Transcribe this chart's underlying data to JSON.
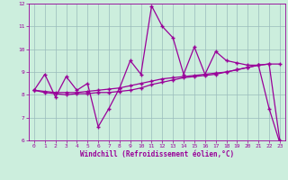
{
  "xlabel": "Windchill (Refroidissement éolien,°C)",
  "background_color": "#cceedd",
  "line_color": "#990099",
  "xlim": [
    -0.5,
    23.5
  ],
  "ylim": [
    6,
    12
  ],
  "yticks": [
    6,
    7,
    8,
    9,
    10,
    11,
    12
  ],
  "xticks": [
    0,
    1,
    2,
    3,
    4,
    5,
    6,
    7,
    8,
    9,
    10,
    11,
    12,
    13,
    14,
    15,
    16,
    17,
    18,
    19,
    20,
    21,
    22,
    23
  ],
  "series1_x": [
    0,
    1,
    2,
    3,
    4,
    5,
    6,
    7,
    8,
    9,
    10,
    11,
    12,
    13,
    14,
    15,
    16,
    17,
    18,
    19,
    20,
    21,
    22,
    23
  ],
  "series1_y": [
    8.2,
    8.9,
    7.9,
    8.8,
    8.2,
    8.5,
    6.6,
    7.4,
    8.3,
    9.5,
    8.9,
    11.9,
    11.0,
    10.5,
    8.9,
    10.1,
    8.9,
    9.9,
    9.5,
    9.4,
    9.3,
    9.3,
    7.4,
    5.9
  ],
  "series2_x": [
    0,
    1,
    2,
    3,
    4,
    5,
    6,
    7,
    8,
    9,
    10,
    11,
    12,
    13,
    14,
    15,
    16,
    17,
    18,
    19,
    20,
    21,
    22,
    23
  ],
  "series2_y": [
    8.2,
    8.15,
    8.1,
    8.1,
    8.1,
    8.15,
    8.2,
    8.25,
    8.3,
    8.4,
    8.5,
    8.6,
    8.7,
    8.75,
    8.8,
    8.85,
    8.9,
    8.95,
    9.0,
    9.1,
    9.2,
    9.3,
    9.35,
    9.35
  ],
  "series3_x": [
    0,
    1,
    2,
    3,
    4,
    5,
    6,
    7,
    8,
    9,
    10,
    11,
    12,
    13,
    14,
    15,
    16,
    17,
    18,
    19,
    20,
    21,
    22,
    23
  ],
  "series3_y": [
    8.2,
    8.1,
    8.05,
    8.0,
    8.05,
    8.05,
    8.1,
    8.1,
    8.15,
    8.2,
    8.3,
    8.45,
    8.55,
    8.65,
    8.75,
    8.8,
    8.85,
    8.9,
    9.0,
    9.1,
    9.2,
    9.3,
    9.35,
    6.0
  ],
  "grid_color": "#99bbbb",
  "marker": "+",
  "markersize": 3.5,
  "linewidth": 0.9
}
